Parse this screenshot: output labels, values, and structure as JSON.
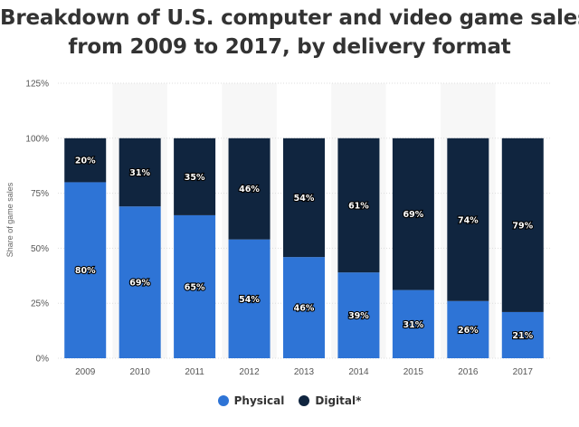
{
  "title_lines": [
    "Breakdown of U.S. computer and video game sales",
    "from 2009 to 2017, by delivery format"
  ],
  "chart_data": {
    "type": "bar",
    "stacked": true,
    "categories": [
      "2009",
      "2010",
      "2011",
      "2012",
      "2013",
      "2014",
      "2015",
      "2016",
      "2017"
    ],
    "series": [
      {
        "name": "Physical",
        "color": "#2e74d6",
        "values": [
          80,
          69,
          65,
          54,
          46,
          39,
          31,
          26,
          21
        ]
      },
      {
        "name": "Digital*",
        "color": "#10253f",
        "values": [
          20,
          31,
          35,
          46,
          54,
          61,
          69,
          74,
          79
        ]
      }
    ],
    "title": "Breakdown of U.S. computer and video game sales from 2009 to 2017, by delivery format",
    "xlabel": "",
    "ylabel": "Share of game sales",
    "ylim": [
      0,
      125
    ],
    "yticks": [
      0,
      25,
      50,
      75,
      100,
      125
    ],
    "ytick_labels": [
      "0%",
      "25%",
      "50%",
      "75%",
      "100%",
      "125%"
    ],
    "value_suffix": "%",
    "grid": true,
    "legend": "bottom-center"
  }
}
